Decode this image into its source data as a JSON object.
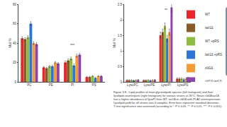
{
  "chart_data": [
    {
      "type": "bar",
      "y_label": "Mol %",
      "categories": [
        "PC",
        "PE",
        "PI",
        "PS"
      ],
      "ylim": [
        0,
        80
      ],
      "yticks": [
        0,
        20,
        40,
        60,
        80
      ],
      "grid": false,
      "legend": "top-right",
      "series": [
        {
          "name": "WT",
          "color": "#e8262b",
          "values": [
            45,
            15,
            20,
            5
          ],
          "errors": [
            1.5,
            1,
            1.5,
            0.5
          ]
        },
        {
          "name": "taz1Δ",
          "color": "#8b5a2b",
          "values": [
            44,
            14,
            22,
            5
          ],
          "errors": [
            1.5,
            1,
            1.5,
            0.5
          ]
        },
        {
          "name": "WT +pRS",
          "color": "#8fbc3f",
          "values": [
            46,
            16,
            24,
            6
          ],
          "errors": [
            1.5,
            1,
            1.5,
            0.5
          ]
        },
        {
          "name": "taz1Δ +pRS",
          "color": "#2e75d6",
          "values": [
            60,
            16,
            17,
            4
          ],
          "errors": [
            2,
            1,
            1.5,
            0.5
          ]
        },
        {
          "name": "cld1Δ",
          "color": "#f39c34",
          "values": [
            40,
            20,
            27,
            6
          ],
          "errors": [
            1.5,
            1,
            1.5,
            0.5
          ]
        },
        {
          "name": "cld1Δ taz1Δ",
          "color": "#8e44ad",
          "values": [
            39,
            19,
            28,
            6
          ],
          "errors": [
            1.5,
            1,
            1.5,
            0.5
          ]
        }
      ],
      "annotations": [
        {
          "text": "***",
          "category": "PI",
          "y": 34
        }
      ]
    },
    {
      "type": "bar",
      "y_label": "Mol %",
      "categories": [
        "LysoPC",
        "LysoPE",
        "LysoPI",
        "LysoPS"
      ],
      "ylim": [
        0,
        2.5
      ],
      "yticks": [
        0,
        0.5,
        1,
        1.5,
        2,
        2.5
      ],
      "grid": false,
      "series": [
        {
          "name": "WT",
          "color": "#e8262b",
          "values": [
            0.05,
            0.05,
            1.5,
            0.1
          ],
          "errors": [
            0.02,
            0.02,
            0.1,
            0.03
          ]
        },
        {
          "name": "taz1Δ",
          "color": "#8b5a2b",
          "values": [
            0.05,
            0.05,
            1.6,
            0.1
          ],
          "errors": [
            0.02,
            0.02,
            0.1,
            0.03
          ]
        },
        {
          "name": "WT +pRS",
          "color": "#8fbc3f",
          "values": [
            0.05,
            0.05,
            1.8,
            0.1
          ],
          "errors": [
            0.02,
            0.02,
            0.1,
            0.03
          ]
        },
        {
          "name": "taz1Δ +pRS",
          "color": "#2e75d6",
          "values": [
            0.04,
            0.04,
            1.4,
            0.08
          ],
          "errors": [
            0.02,
            0.02,
            0.1,
            0.03
          ]
        },
        {
          "name": "cld1Δ",
          "color": "#f39c34",
          "values": [
            0.05,
            0.05,
            1.6,
            0.1
          ],
          "errors": [
            0.02,
            0.02,
            0.1,
            0.03
          ]
        },
        {
          "name": "cld1Δ taz1Δ",
          "color": "#8e44ad",
          "values": [
            0.06,
            0.06,
            2.4,
            0.12
          ],
          "errors": [
            0.02,
            0.02,
            0.15,
            0.03
          ]
        }
      ],
      "annotations": [
        {
          "text": "**",
          "category": "LysoPI",
          "y": 2.2
        }
      ]
    }
  ],
  "caption": [
    "Figure 3.8 - Lipid profiles of main glycerolipids species (left histogram) and their lysolipid counterparts (right histogram) for various strains at 26°C. Strain cld1Δtaz1Δ has a higher abundance of lysoPI than WT, taz1Δ or cld1Δ with PLA2 overexpression. Lysolipid yield for all strains was 6 samples. Error bars represent standard deviation.",
    "T-test significance was assessed (according to *: P ≤ 0.05, **: P ≤ 0.01, ***: P ≤ 0.001)."
  ]
}
